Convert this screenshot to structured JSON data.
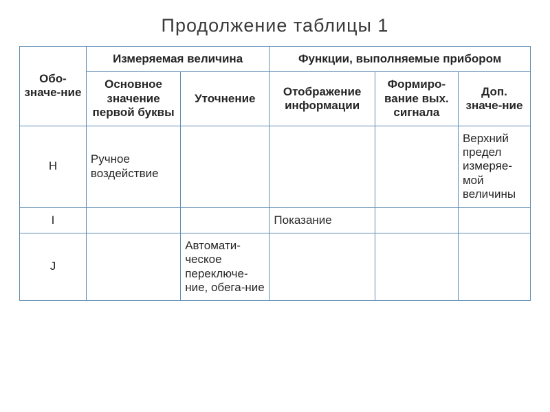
{
  "title": "Продолжение таблицы 1",
  "table": {
    "border_color": "#5b8ab3",
    "bg_color": "#ffffff",
    "text_color": "#262626",
    "title_fontsize": 27,
    "cell_fontsize": 17,
    "columns_width_pct": [
      12,
      17,
      16,
      19,
      15,
      13
    ],
    "header": {
      "col0": "Обо-значе-ние",
      "group_measured": "Измеряемая величина",
      "group_functions": "Функции, выполняемые прибором",
      "col1": "Основное значение первой буквы",
      "col2": "Уточнение",
      "col3": "Отображение информации",
      "col4": "Формиро-вание вых. сигнала",
      "col5": "Доп. значе-ние"
    },
    "rows": [
      {
        "code": "H",
        "main_meaning": "Ручное воздействие",
        "refinement": "",
        "display": "",
        "signal": "",
        "extra": "Верхний предел измеряе-мой величины"
      },
      {
        "code": "I",
        "main_meaning": "",
        "refinement": "",
        "display": "Показание",
        "signal": "",
        "extra": ""
      },
      {
        "code": "J",
        "main_meaning": "",
        "refinement": "Автомати-ческое переключе-ние, обега-ние",
        "display": "",
        "signal": "",
        "extra": ""
      }
    ]
  }
}
